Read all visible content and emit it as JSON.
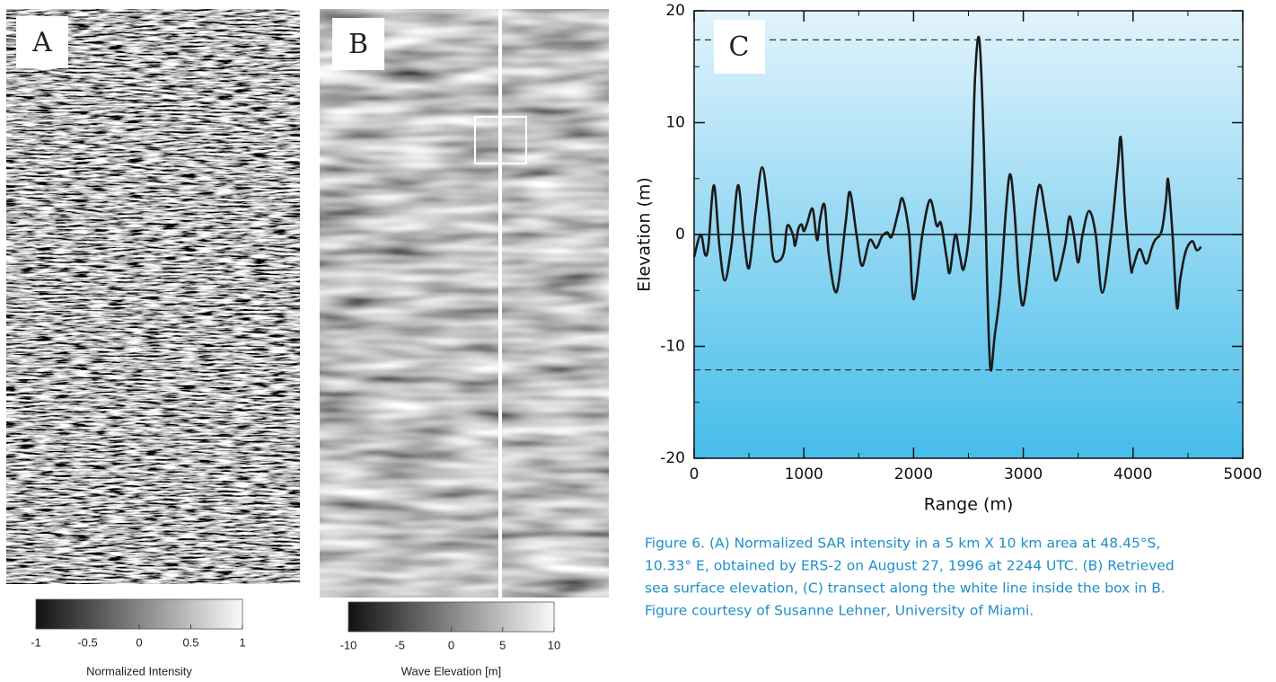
{
  "chart_data": [
    {
      "type": "image",
      "label": "A",
      "colorbar": {
        "label": "Normalized Intensity",
        "xlim": [
          -1,
          1
        ],
        "xticks": [
          -1,
          -0.5,
          0,
          0.5,
          1
        ]
      }
    },
    {
      "type": "image",
      "label": "B",
      "colorbar": {
        "label": "Wave Elevation [m]",
        "xlim": [
          -10,
          10
        ],
        "xticks": [
          -10,
          -5,
          0,
          5,
          10
        ]
      }
    },
    {
      "type": "line",
      "label": "C",
      "x_label": "Range (m)",
      "y_label": "Elevation (m)",
      "xlim": [
        0,
        5000
      ],
      "xticks": [
        0,
        1000,
        2000,
        3000,
        4000,
        5000
      ],
      "xminorticks": [
        500,
        1500,
        2500,
        3500,
        4500
      ],
      "ylim": [
        -20,
        20
      ],
      "yticks": [
        -20,
        -10,
        0,
        10,
        20
      ],
      "yminorticks": [
        -15,
        -5,
        5,
        15
      ],
      "hlines": [
        17.4,
        -12.1
      ],
      "zero_line": true,
      "series": [
        {
          "color": "#1a1a1a",
          "x": [
            0,
            60,
            100,
            130,
            180,
            230,
            280,
            340,
            400,
            450,
            500,
            560,
            620,
            680,
            720,
            780,
            820,
            850,
            900,
            920,
            950,
            980,
            1000,
            1030,
            1080,
            1120,
            1150,
            1190,
            1230,
            1300,
            1380,
            1420,
            1480,
            1530,
            1600,
            1660,
            1710,
            1760,
            1800,
            1860,
            1900,
            1960,
            2000,
            2080,
            2150,
            2210,
            2250,
            2300,
            2330,
            2380,
            2420,
            2460,
            2520,
            2560,
            2600,
            2640,
            2670,
            2700,
            2740,
            2790,
            2840,
            2880,
            2920,
            2960,
            3000,
            3060,
            3140,
            3200,
            3260,
            3300,
            3380,
            3420,
            3460,
            3500,
            3540,
            3600,
            3660,
            3720,
            3800,
            3860,
            3890,
            3930,
            3980,
            4000,
            4060,
            4120,
            4170,
            4200,
            4260,
            4300,
            4320,
            4360,
            4400,
            4430,
            4480,
            4540,
            4580,
            4620
          ],
          "values": [
            -2,
            0,
            -1.8,
            -1,
            4.4,
            -1,
            -4.1,
            -1,
            4.4,
            0,
            -3,
            2,
            6,
            2,
            -2,
            -2.3,
            -1.5,
            0.8,
            0,
            -1,
            0.5,
            0.9,
            0.3,
            1,
            2.3,
            -0.5,
            1.5,
            2.6,
            -2,
            -5.1,
            1,
            3.8,
            0,
            -2.8,
            -0.5,
            -1.2,
            -0.2,
            0.2,
            -0.2,
            2,
            3.2,
            0,
            -5.8,
            0,
            3.1,
            0.8,
            1,
            -2,
            -3.4,
            0,
            -1.8,
            -3,
            2,
            14,
            17.4,
            8,
            -4,
            -12,
            -9,
            -5,
            2,
            5.4,
            2,
            -4,
            -6.3,
            -2,
            4.3,
            2,
            -2,
            -4.1,
            -1,
            1.6,
            0,
            -2.5,
            0,
            2.1,
            0,
            -5.2,
            0,
            6,
            8.6,
            2,
            -3,
            -2.9,
            -1.3,
            -2.6,
            -1.2,
            -0.5,
            0.3,
            3,
            4.9,
            0,
            -6.5,
            -4,
            -1.5,
            -0.6,
            -1.4,
            -1.1
          ]
        }
      ]
    }
  ],
  "caption": [
    "Figure 6. (A) Normalized SAR intensity in a 5 km X 10 km area at 48.45°S,",
    "10.33° E, obtained by ERS-2 on August 27, 1996 at 2244 UTC. (B) Retrieved",
    "sea surface elevation, (C) transect along the white line inside the box in B.",
    "Figure courtesy of Susanne Lehner, University of Miami."
  ]
}
